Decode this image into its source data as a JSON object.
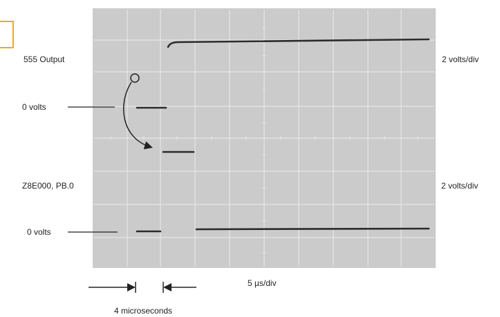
{
  "labels": {
    "ch1_name": "555 Output",
    "ch1_zero": "0 volts",
    "ch1_scale": "2 volts/div",
    "ch2_name": "Z8E000, PB.0",
    "ch2_zero": "0 volts",
    "ch2_scale": "2 volts/div",
    "timebase": "5 µs/div",
    "interval": "4 microseconds"
  },
  "colors": {
    "highlight": "#f2a81d",
    "screen": "#c9c9c9",
    "trace": "#2a2a2a"
  }
}
